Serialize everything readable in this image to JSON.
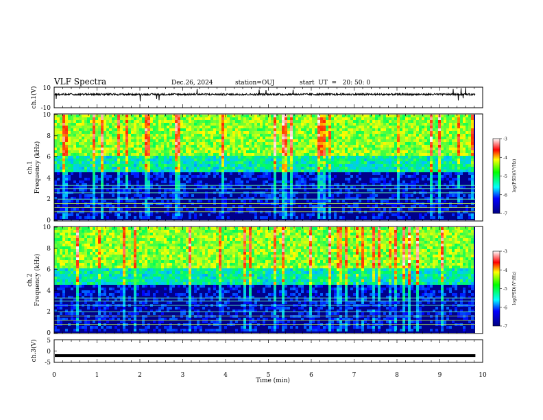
{
  "header": {
    "title": "VLF Spectra",
    "date": "Dec.26, 2024",
    "station": "station=OUJ",
    "start": "start  UT  =   20: 50: 0"
  },
  "chart_data": [
    {
      "type": "line",
      "panel": "ch1-waveform",
      "ylabel": "ch.1(V)",
      "ylim": [
        -10,
        10
      ],
      "yticks": [
        "10",
        "-10"
      ],
      "xlim": [
        0,
        10
      ],
      "series": [
        {
          "values_description_level": 3,
          "noise_amplitude": 0.9
        }
      ]
    },
    {
      "type": "heatmap",
      "panel": "ch1-spectrogram",
      "ylabel_line1": "ch.1",
      "ylabel_line2": "Frequency (kHz)",
      "ylim": [
        0,
        10
      ],
      "yticks": [
        "0",
        "2",
        "4",
        "6",
        "8",
        "10"
      ],
      "xlim": [
        0,
        9.83
      ],
      "colorbar": {
        "label": "log(PSD)(V²/Hz)",
        "range": [
          -7,
          -3
        ],
        "ticks": [
          "-3",
          "-4",
          "-5",
          "-6",
          "-7"
        ]
      }
    },
    {
      "type": "heatmap",
      "panel": "ch2-spectrogram",
      "ylabel_line1": "ch.2",
      "ylabel_line2": "Frequency (kHz)",
      "ylim": [
        0,
        10
      ],
      "yticks": [
        "0",
        "2",
        "4",
        "6",
        "8",
        "10"
      ],
      "xlim": [
        0,
        9.83
      ],
      "colorbar": {
        "label": "log(PSD)(V²/Hz)",
        "range": [
          -7,
          -3
        ],
        "ticks": [
          "-3",
          "-4",
          "-5",
          "-6",
          "-7"
        ]
      }
    },
    {
      "type": "line",
      "panel": "ch3-waveform",
      "ylabel": "ch.3(V)",
      "ylim": [
        -5,
        5
      ],
      "yticks": [
        "5",
        "0",
        "-5"
      ],
      "xlim": [
        0,
        10
      ],
      "series": [
        {
          "level": -2
        }
      ]
    }
  ],
  "xaxis": {
    "label": "Time (min)",
    "ticks": [
      "0",
      "1",
      "2",
      "3",
      "4",
      "5",
      "6",
      "7",
      "8",
      "9",
      "10"
    ]
  },
  "colors": {
    "low": "#00008b",
    "mid": "#00ff80",
    "high": "#ff0000"
  }
}
